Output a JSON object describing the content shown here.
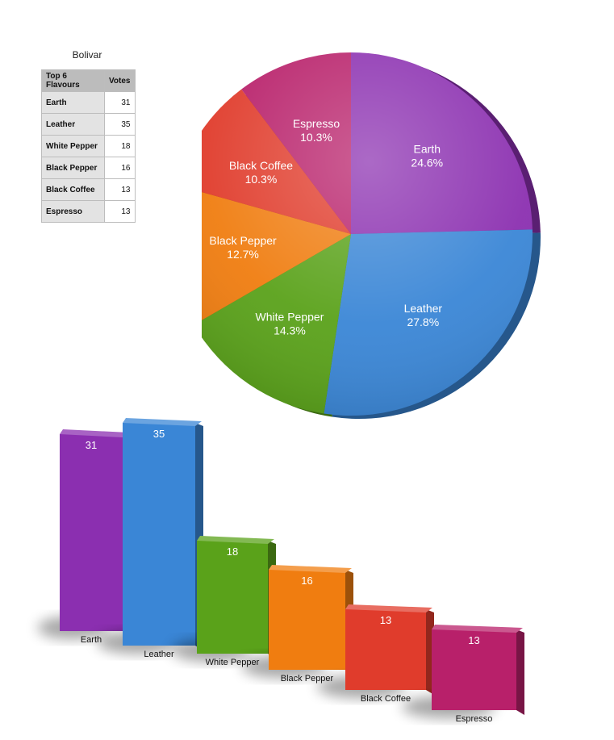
{
  "table": {
    "title": "Bolivar",
    "headers": [
      "Top 6 Flavours",
      "Votes"
    ],
    "rows": [
      {
        "name": "Earth",
        "votes": "31"
      },
      {
        "name": "Leather",
        "votes": "35"
      },
      {
        "name": "White Pepper",
        "votes": "18"
      },
      {
        "name": "Black Pepper",
        "votes": "16"
      },
      {
        "name": "Black Coffee",
        "votes": "13"
      },
      {
        "name": "Espresso",
        "votes": "13"
      }
    ]
  },
  "chart_data": [
    {
      "type": "pie",
      "categories": [
        "Earth",
        "Leather",
        "White Pepper",
        "Black Pepper",
        "Black Coffee",
        "Espresso"
      ],
      "values": [
        31,
        35,
        18,
        16,
        13,
        13
      ],
      "labels": [
        "24.6%",
        "27.8%",
        "14.3%",
        "12.7%",
        "10.3%",
        "10.3%"
      ],
      "colors": [
        "#8b2fb0",
        "#3a86d6",
        "#5aa21a",
        "#f07d10",
        "#e03c2c",
        "#b8206a"
      ],
      "start_angle": "top, clockwise"
    },
    {
      "type": "bar",
      "categories": [
        "Earth",
        "Leather",
        "White Pepper",
        "Black Pepper",
        "Black Coffee",
        "Espresso"
      ],
      "values": [
        31,
        35,
        18,
        16,
        13,
        13
      ],
      "data_labels": [
        "31",
        "35",
        "18",
        "16",
        "13",
        "13"
      ],
      "colors": [
        "#8b2fb0",
        "#3a86d6",
        "#5aa21a",
        "#f07d10",
        "#e03c2c",
        "#b8206a"
      ]
    }
  ]
}
